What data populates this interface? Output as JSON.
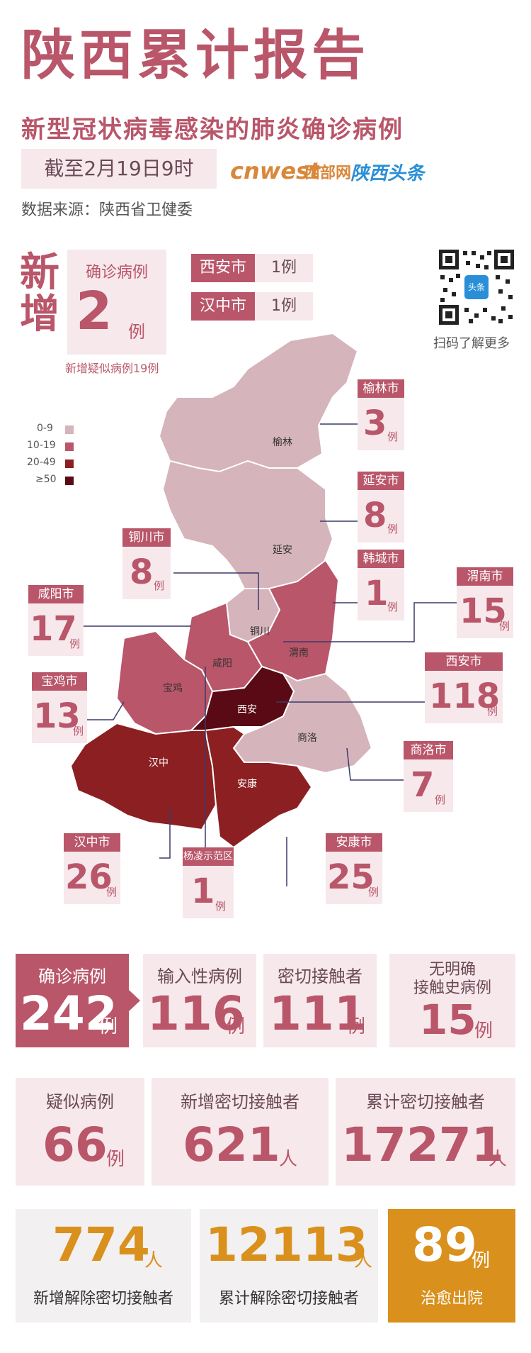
{
  "header": {
    "title": "陕西累计报告",
    "subtitle": "新型冠状病毒感染的肺炎确诊病例",
    "date": "截至2月19日9时",
    "source": "数据来源：陕西省卫健委",
    "logo_cnwest": "cnwest",
    "logo_westcn": "西部网",
    "logo_sxtt": "陕西头条"
  },
  "new_today": {
    "tag": "新增",
    "label": "确诊病例",
    "value": "2",
    "unit": "例",
    "suspect_note": "新增疑似病例19例",
    "cities": [
      {
        "name": "西安市",
        "count": "1例"
      },
      {
        "name": "汉中市",
        "count": "1例"
      }
    ]
  },
  "qr": {
    "caption": "扫码了解更多",
    "badge": "头条"
  },
  "legend": [
    {
      "label": "0-9",
      "color": "#d5b4bb"
    },
    {
      "label": "10-19",
      "color": "#b9566a"
    },
    {
      "label": "20-49",
      "color": "#8b1f22"
    },
    {
      "label": "≥50",
      "color": "#5a0a14"
    }
  ],
  "map_labels": {
    "yulin": "榆林",
    "yanan": "延安",
    "tongchuan": "铜川",
    "xianyang": "咸阳",
    "weinan": "渭南",
    "baoji": "宝鸡",
    "xian": "西安",
    "shangluo": "商洛",
    "hanzhong": "汉中",
    "ankang": "安康"
  },
  "city_callouts": [
    {
      "name": "榆林市",
      "value": "3",
      "unit": "例"
    },
    {
      "name": "延安市",
      "value": "8",
      "unit": "例"
    },
    {
      "name": "铜川市",
      "value": "8",
      "unit": "例"
    },
    {
      "name": "韩城市",
      "value": "1",
      "unit": "例"
    },
    {
      "name": "渭南市",
      "value": "15",
      "unit": "例"
    },
    {
      "name": "咸阳市",
      "value": "17",
      "unit": "例"
    },
    {
      "name": "西安市",
      "value": "118",
      "unit": "例"
    },
    {
      "name": "宝鸡市",
      "value": "13",
      "unit": "例"
    },
    {
      "name": "商洛市",
      "value": "7",
      "unit": "例"
    },
    {
      "name": "汉中市",
      "value": "26",
      "unit": "例"
    },
    {
      "name": "杨凌示范区",
      "value": "1",
      "unit": "例"
    },
    {
      "name": "安康市",
      "value": "25",
      "unit": "例"
    }
  ],
  "stats_row1": [
    {
      "label": "确诊病例",
      "value": "242",
      "unit": "例"
    },
    {
      "label": "输入性病例",
      "value": "116",
      "unit": "例"
    },
    {
      "label": "密切接触者",
      "value": "111",
      "unit": "例"
    },
    {
      "label1": "无明确",
      "label2": "接触史病例",
      "value": "15",
      "unit": "例"
    }
  ],
  "stats_row2": [
    {
      "label": "疑似病例",
      "value": "66",
      "unit": "例"
    },
    {
      "label": "新增密切接触者",
      "value": "621",
      "unit": "人"
    },
    {
      "label": "累计密切接触者",
      "value": "17271",
      "unit": "人"
    }
  ],
  "stats_row3": [
    {
      "label": "新增解除密切接触者",
      "value": "774",
      "unit": "人"
    },
    {
      "label": "累计解除密切接触者",
      "value": "12113",
      "unit": "人"
    },
    {
      "label": "治愈出院",
      "value": "89",
      "unit": "例"
    }
  ]
}
